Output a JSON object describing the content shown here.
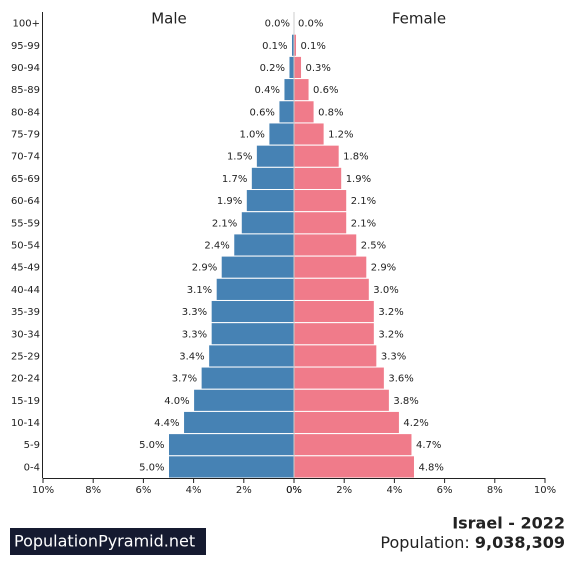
{
  "chart_data": {
    "type": "population_pyramid",
    "categories": [
      "100+",
      "95-99",
      "90-94",
      "85-89",
      "80-84",
      "75-79",
      "70-74",
      "65-69",
      "60-64",
      "55-59",
      "50-54",
      "45-49",
      "40-44",
      "35-39",
      "30-34",
      "25-29",
      "20-24",
      "15-19",
      "10-14",
      "5-9",
      "0-4"
    ],
    "series": [
      {
        "name": "Male",
        "color": "#4682b4",
        "side": "left",
        "values": [
          0.0,
          0.1,
          0.2,
          0.4,
          0.6,
          1.0,
          1.5,
          1.7,
          1.9,
          2.1,
          2.4,
          2.9,
          3.1,
          3.3,
          3.3,
          3.4,
          3.7,
          4.0,
          4.4,
          5.0,
          5.0
        ],
        "value_labels": [
          "0.0%",
          "0.1%",
          "0.2%",
          "0.4%",
          "0.6%",
          "1.0%",
          "1.5%",
          "1.7%",
          "1.9%",
          "2.1%",
          "2.4%",
          "2.9%",
          "3.1%",
          "3.3%",
          "3.3%",
          "3.4%",
          "3.7%",
          "4.0%",
          "4.4%",
          "5.0%",
          "5.0%"
        ]
      },
      {
        "name": "Female",
        "color": "#f07b8a",
        "side": "right",
        "values": [
          0.0,
          0.1,
          0.3,
          0.6,
          0.8,
          1.2,
          1.8,
          1.9,
          2.1,
          2.1,
          2.5,
          2.9,
          3.0,
          3.2,
          3.2,
          3.3,
          3.6,
          3.8,
          4.2,
          4.7,
          4.8
        ],
        "value_labels": [
          "0.0%",
          "0.1%",
          "0.3%",
          "0.6%",
          "0.8%",
          "1.2%",
          "1.8%",
          "1.9%",
          "2.1%",
          "2.1%",
          "2.5%",
          "2.9%",
          "3.0%",
          "3.2%",
          "3.2%",
          "3.3%",
          "3.6%",
          "3.8%",
          "4.2%",
          "4.7%",
          "4.8%"
        ]
      }
    ],
    "xlim": [
      0,
      10
    ],
    "xticks_left": [
      {
        "value": 10,
        "label": "10%"
      },
      {
        "value": 8,
        "label": "8%"
      },
      {
        "value": 6,
        "label": "6%"
      },
      {
        "value": 4,
        "label": "4%"
      },
      {
        "value": 2,
        "label": "2%"
      },
      {
        "value": 0,
        "label": "0%"
      }
    ],
    "xticks_right": [
      {
        "value": 0,
        "label": "0%"
      },
      {
        "value": 2,
        "label": "2%"
      },
      {
        "value": 4,
        "label": "4%"
      },
      {
        "value": 6,
        "label": "6%"
      },
      {
        "value": 8,
        "label": "8%"
      },
      {
        "value": 10,
        "label": "10%"
      }
    ]
  },
  "footer": {
    "brand": "PopulationPyramid.net",
    "title": "Israel - 2022",
    "population_label": "Population:",
    "population_value": "9,038,309"
  }
}
